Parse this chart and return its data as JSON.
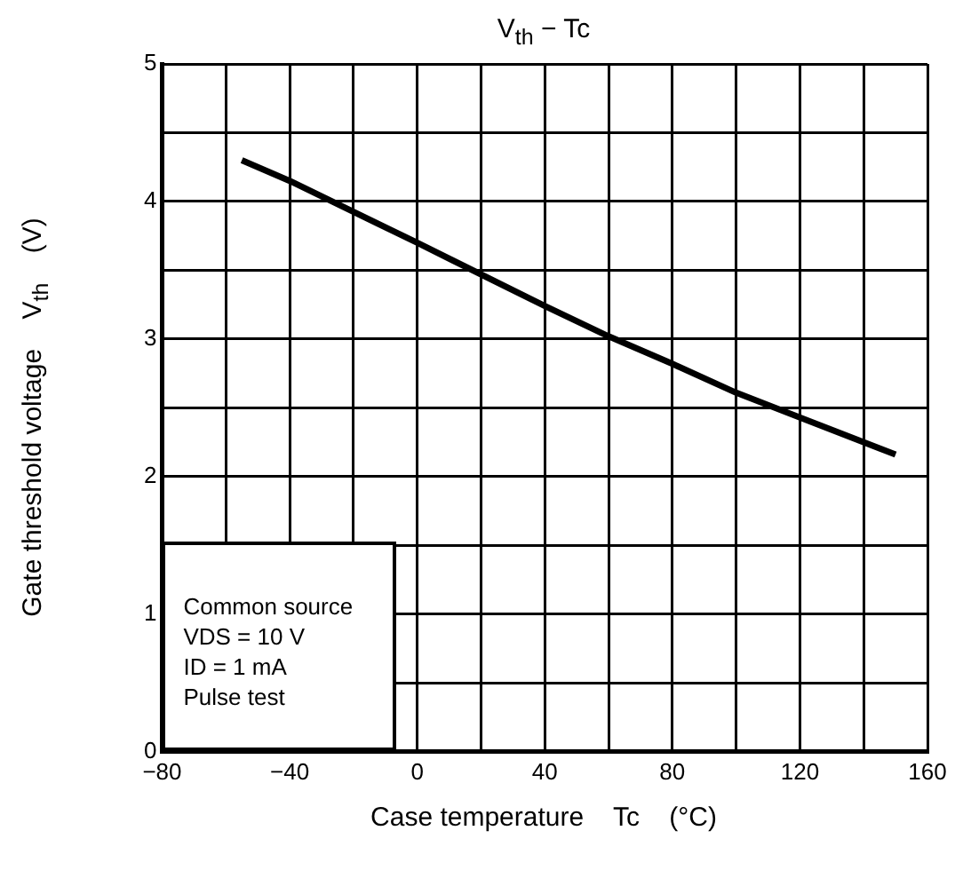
{
  "chart_data": {
    "type": "line",
    "title": "V$_{th}$ − Tc",
    "xlabel": "Case temperature    Tc    (°C)",
    "ylabel": "Gate threshold voltage    V$_{th}$    (V)",
    "x": [
      -55,
      -40,
      0,
      40,
      60,
      80,
      100,
      120,
      150
    ],
    "series": [
      {
        "color": "#000000",
        "values": [
          4.3,
          4.15,
          3.7,
          3.24,
          3.02,
          2.82,
          2.61,
          2.43,
          2.16
        ]
      }
    ],
    "xlim": [
      -80,
      160
    ],
    "xticks": [
      {
        "value": -80,
        "label": "−80"
      },
      {
        "value": -60,
        "label": null
      },
      {
        "value": -40,
        "label": "−40"
      },
      {
        "value": -20,
        "label": null
      },
      0,
      {
        "value": 20,
        "label": null
      },
      40,
      {
        "value": 60,
        "label": null
      },
      80,
      {
        "value": 100,
        "label": null
      },
      120,
      {
        "value": 140,
        "label": null
      },
      160
    ],
    "ylim": [
      0,
      5
    ],
    "yticks": [
      0,
      {
        "value": 0.5,
        "label": null
      },
      1,
      {
        "value": 1.5,
        "label": null
      },
      2,
      {
        "value": 2.5,
        "label": null
      },
      3,
      {
        "value": 3.5,
        "label": null
      },
      4,
      {
        "value": 4.5,
        "label": null
      },
      5
    ],
    "grid": true,
    "legend": false,
    "marker": "none",
    "line_style": "solid",
    "annotations": [
      "Common source\nVDS = 10 V\nID = 1 mA\nPulse test"
    ]
  }
}
